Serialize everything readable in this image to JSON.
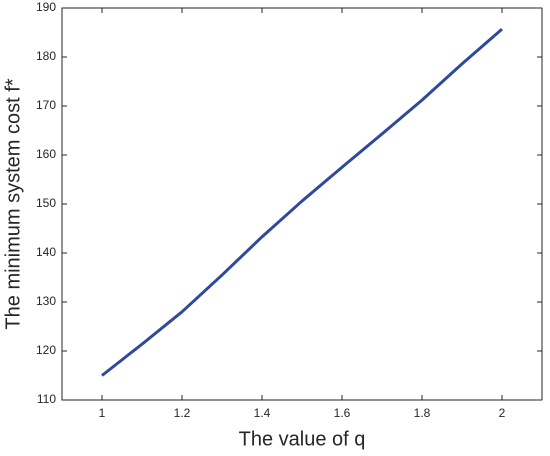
{
  "chart_data": {
    "type": "line",
    "x_label": "The value of q",
    "y_label": "The minimum system cost f*",
    "x": [
      1,
      1.1,
      1.2,
      1.3,
      1.4,
      1.5,
      1.6,
      1.7,
      1.8,
      1.9,
      2
    ],
    "series": [
      {
        "color": "#2f4a9c",
        "values": [
          115,
          121.4,
          128,
          135.5,
          143.3,
          150.6,
          157.5,
          164.3,
          171.2,
          178.6,
          185.7
        ]
      }
    ],
    "xlim": [
      0.9,
      2.1
    ],
    "xticks": [
      1,
      1.2,
      1.4,
      1.6,
      1.8,
      2
    ],
    "ylim": [
      110,
      190
    ],
    "yticks": [
      110,
      120,
      130,
      140,
      150,
      160,
      170,
      180,
      190
    ],
    "grid": false
  }
}
